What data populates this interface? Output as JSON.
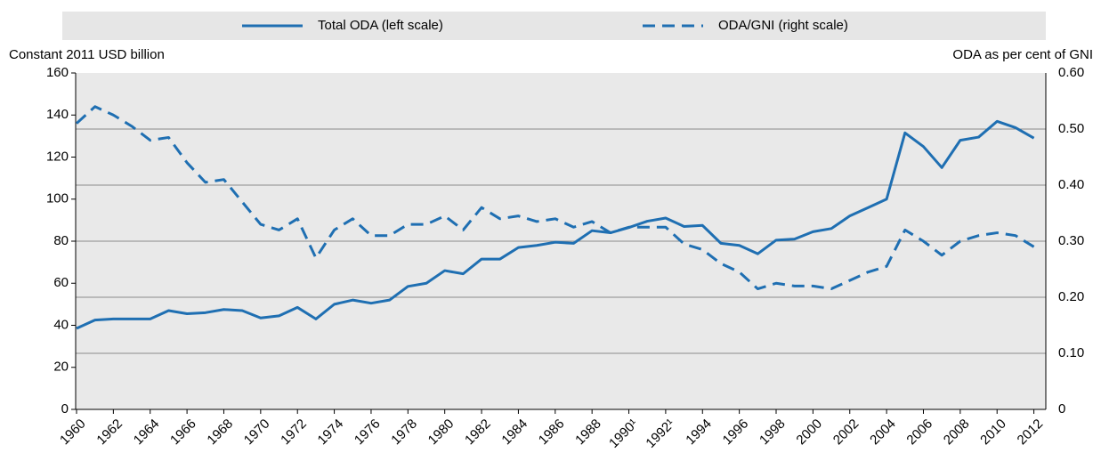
{
  "chart_data": {
    "type": "line",
    "y_label": "Constant 2011 USD billion",
    "y2_label": "ODA as per cent of GNI",
    "x": [
      1960,
      1961,
      1962,
      1963,
      1964,
      1965,
      1966,
      1967,
      1968,
      1969,
      1970,
      1971,
      1972,
      1973,
      1974,
      1975,
      1976,
      1977,
      1978,
      1979,
      1980,
      1981,
      1982,
      1983,
      1984,
      1985,
      1986,
      1987,
      1988,
      1989,
      1990,
      1991,
      1992,
      1993,
      1994,
      1995,
      1996,
      1997,
      1998,
      1999,
      2000,
      2001,
      2002,
      2003,
      2004,
      2005,
      2006,
      2007,
      2008,
      2009,
      2010,
      2011,
      2012
    ],
    "xlim": [
      1960,
      2012.6
    ],
    "xticks": [
      1960,
      1962,
      1964,
      1966,
      1968,
      1970,
      1972,
      1974,
      1976,
      1978,
      1980,
      1982,
      1984,
      1986,
      1988,
      {
        "value": 1990,
        "label": "1990¹"
      },
      {
        "value": 1992,
        "label": "1992¹"
      },
      1994,
      1996,
      1998,
      2000,
      2002,
      2004,
      2006,
      2008,
      2010,
      2012
    ],
    "ylim": [
      0,
      160
    ],
    "yticks": [
      0,
      20,
      40,
      60,
      80,
      100,
      120,
      140,
      160
    ],
    "y2lim": [
      0,
      0.6
    ],
    "y2ticks": [
      0,
      {
        "value": 0.1,
        "label": "0.10"
      },
      {
        "value": 0.2,
        "label": "0.20"
      },
      {
        "value": 0.3,
        "label": "0.30"
      },
      {
        "value": 0.4,
        "label": "0.40"
      },
      {
        "value": 0.5,
        "label": "0.50"
      },
      {
        "value": 0.6,
        "label": "0.60"
      }
    ],
    "grid": true,
    "series": [
      {
        "name": "Total ODA (left scale)",
        "color": "#1f6fb2",
        "dash": false,
        "values": [
          38.5,
          42.5,
          43,
          43,
          43,
          47,
          45.5,
          46,
          47.5,
          47,
          43.5,
          44.5,
          48.5,
          43,
          50,
          52,
          50.5,
          52,
          58.5,
          60,
          66,
          64.5,
          71.5,
          71.5,
          77,
          78,
          79.5,
          79,
          85,
          84,
          86.5,
          89.5,
          91,
          87,
          87.5,
          79,
          78,
          74,
          80.5,
          81,
          84.5,
          86,
          92,
          96,
          100,
          131.5,
          125,
          115,
          128,
          129.5,
          137,
          134,
          129
        ]
      },
      {
        "name": "ODA/GNI (right scale)",
        "color": "#1f6fb2",
        "dash": true,
        "axis": "y2",
        "values": [
          0.51,
          0.54,
          0.525,
          0.505,
          0.48,
          0.485,
          0.44,
          0.405,
          0.41,
          0.37,
          0.33,
          0.32,
          0.34,
          0.27,
          0.32,
          0.34,
          0.31,
          0.31,
          0.33,
          0.33,
          0.345,
          0.32,
          0.36,
          0.34,
          0.345,
          0.335,
          0.34,
          0.325,
          0.335,
          0.315,
          0.325,
          0.325,
          0.325,
          0.295,
          0.285,
          0.26,
          0.245,
          0.215,
          0.225,
          0.22,
          0.22,
          0.215,
          0.23,
          0.245,
          0.255,
          0.32,
          0.3,
          0.275,
          0.3,
          0.31,
          0.315,
          0.31,
          0.29
        ]
      }
    ]
  }
}
